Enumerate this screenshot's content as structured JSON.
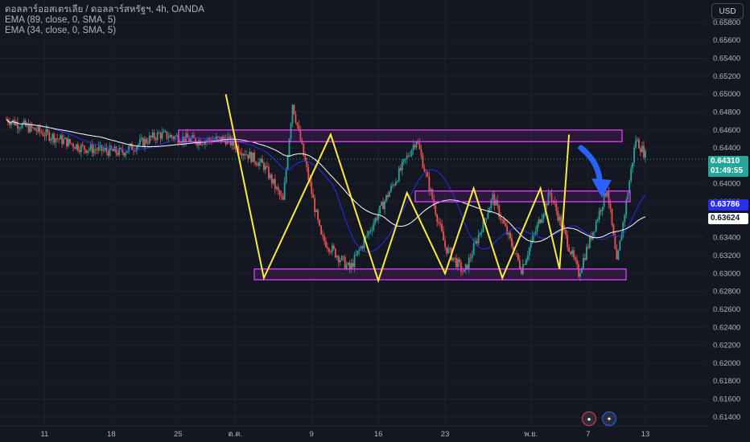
{
  "legend": {
    "symbol": "ดอลลาร์ออสเตรเลีย / ดอลลาร์สหรัฐฯ, 4h, OANDA",
    "ema1": "EMA (89, close, 0, SMA, 5)",
    "ema2": "EMA (34, close, 0, SMA, 5)"
  },
  "currency": "USD",
  "price_tags": {
    "last_price": "0.64310",
    "countdown": "01:49:55",
    "ema89": "0.63786",
    "ema34": "0.63624"
  },
  "colors": {
    "background": "#131722",
    "up": "#26a69a",
    "down": "#ef5350",
    "ema89": "#2a2eec",
    "ema34": "#ffffff",
    "zigzag": "#ffeb3b",
    "zone": "#e040fb",
    "arrow": "#2962ff"
  },
  "chart_data": {
    "type": "line",
    "ylim": [
      0.613,
      0.6605
    ],
    "y_ticks": [
      "0.65800",
      "0.65600",
      "0.65400",
      "0.65200",
      "0.65000",
      "0.64800",
      "0.64600",
      "0.64400",
      "0.64200",
      "0.64000",
      "0.63800",
      "0.63600",
      "0.63400",
      "0.63200",
      "0.63000",
      "0.62800",
      "0.62600",
      "0.62400",
      "0.62200",
      "0.62000",
      "0.61800",
      "0.61600",
      "0.61400"
    ],
    "x_ticks": [
      "11",
      "18",
      "25",
      "ต.ค.",
      "9",
      "16",
      "23",
      "พ.ย.",
      "7",
      "13"
    ],
    "series": [
      {
        "name": "Zigzag",
        "points": [
          [
            "Sep 30",
            0.65
          ],
          [
            "Oct 4",
            0.6295
          ],
          [
            "Oct 11",
            0.6455
          ],
          [
            "Oct 16",
            0.6292
          ],
          [
            "Oct 19",
            0.639
          ],
          [
            "Oct 23",
            0.63
          ],
          [
            "Oct 26",
            0.6395
          ],
          [
            "Oct 29",
            0.6295
          ],
          [
            "Nov 2",
            0.6395
          ],
          [
            "Nov 4",
            0.6305
          ],
          [
            "Nov 5",
            0.6455
          ]
        ]
      }
    ],
    "zones": [
      {
        "from": 0.6447,
        "to": 0.646
      },
      {
        "from": 0.638,
        "to": 0.6392
      },
      {
        "from": 0.6293,
        "to": 0.6305
      }
    ]
  }
}
